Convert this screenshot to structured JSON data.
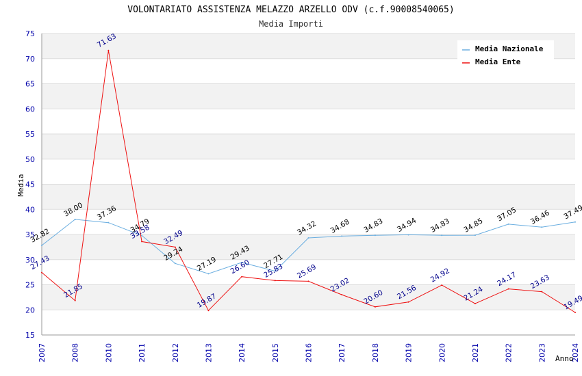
{
  "chart_data": {
    "type": "line",
    "title": "VOLONTARIATO ASSISTENZA MELAZZO ARZELLO ODV (c.f.90008540065)",
    "subtitle": "Media Importi",
    "xlabel": "Anno",
    "ylabel": "Media",
    "ylim": [
      15,
      75
    ],
    "yticks": [
      "15",
      "20",
      "25",
      "30",
      "35",
      "40",
      "45",
      "50",
      "55",
      "60",
      "65",
      "70",
      "75"
    ],
    "categories": [
      "2007",
      "2008",
      "2010",
      "2011",
      "2012",
      "2013",
      "2014",
      "2015",
      "2016",
      "2017",
      "2018",
      "2019",
      "2020",
      "2021",
      "2022",
      "2023",
      "2024"
    ],
    "grid": "horizontal, alternating bands",
    "legend_position": "top-right",
    "series": [
      {
        "name": "Media Nazionale",
        "color": "#6aaee0",
        "values": [
          32.82,
          38.0,
          37.36,
          34.79,
          29.24,
          27.19,
          29.43,
          27.71,
          34.32,
          34.68,
          34.83,
          34.94,
          34.83,
          34.85,
          37.05,
          36.46,
          37.49
        ],
        "labels": [
          "32.82",
          "38.00",
          "37.36",
          "34.79",
          "29.24",
          "27.19",
          "29.43",
          "27.71",
          "34.32",
          "34.68",
          "34.83",
          "34.94",
          "34.83",
          "34.85",
          "37.05",
          "36.46",
          "37.49"
        ]
      },
      {
        "name": "Media Ente",
        "color": "#ee1111",
        "values": [
          27.43,
          21.85,
          71.63,
          33.58,
          32.49,
          19.87,
          26.6,
          25.83,
          25.69,
          23.02,
          20.6,
          21.56,
          24.92,
          21.24,
          24.17,
          23.63,
          19.49
        ],
        "labels": [
          "27.43",
          "21.85",
          "71.63",
          "33.58",
          "32.49",
          "19.87",
          "26.60",
          "25.83",
          "25.69",
          "23.02",
          "20.60",
          "21.56",
          "24.92",
          "21.24",
          "24.17",
          "23.63",
          "19.49"
        ]
      }
    ]
  }
}
